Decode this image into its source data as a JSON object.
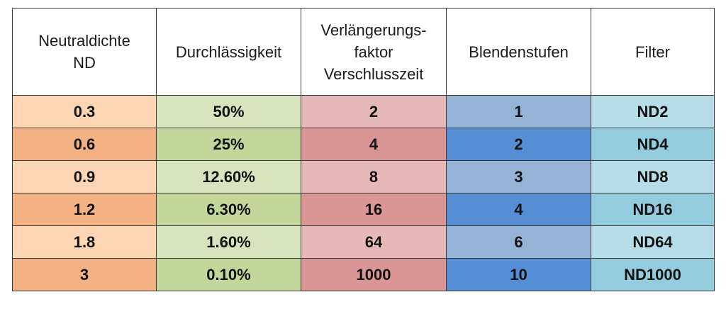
{
  "table": {
    "headers": [
      {
        "lines": [
          "Neutraldichte",
          "ND"
        ]
      },
      {
        "lines": [
          "Durchlässigkeit"
        ]
      },
      {
        "lines": [
          "Verlängerungs-",
          "faktor",
          "Verschlusszeit"
        ]
      },
      {
        "lines": [
          "Blendenstufen"
        ]
      },
      {
        "lines": [
          "Filter"
        ]
      }
    ],
    "rows": [
      [
        "0.3",
        "50%",
        "2",
        "1",
        "ND2"
      ],
      [
        "0.6",
        "25%",
        "4",
        "2",
        "ND4"
      ],
      [
        "0.9",
        "12.60%",
        "8",
        "3",
        "ND8"
      ],
      [
        "1.2",
        "6.30%",
        "16",
        "4",
        "ND16"
      ],
      [
        "1.8",
        "1.60%",
        "64",
        "6",
        "ND64"
      ],
      [
        "3",
        "0.10%",
        "1000",
        "10",
        "ND1000"
      ]
    ]
  },
  "colors": {
    "column_light": [
      "#fcd5b5",
      "#d8e4bd",
      "#e6b9b8",
      "#95b3d7",
      "#b7dee8"
    ],
    "column_dark": [
      "#f4b183",
      "#c4d79b",
      "#d99694",
      "#558ed5",
      "#93cddd"
    ]
  }
}
